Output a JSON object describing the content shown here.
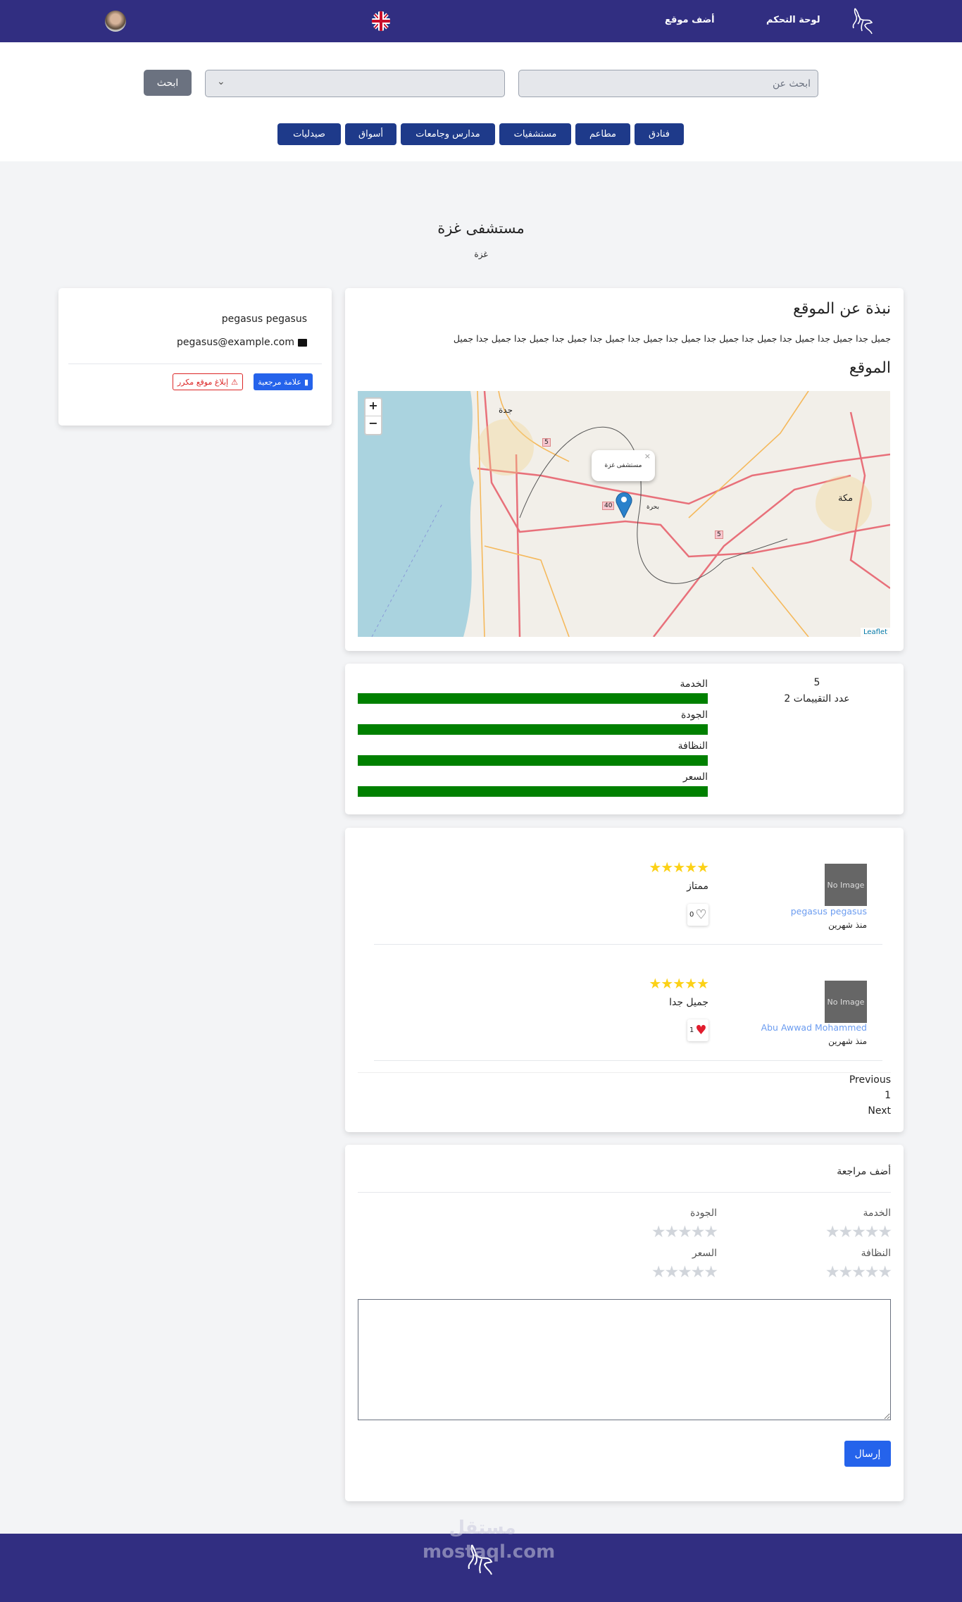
{
  "nav": {
    "dashboard": "لوحة التحكم",
    "add_site": "أضف موقع",
    "logo": "pegasus-logo",
    "flag": "uk-flag-icon",
    "avatar": "user-avatar"
  },
  "search": {
    "placeholder": "ابحث عن",
    "select_value": "",
    "button": "ابحث"
  },
  "categories": [
    "فنادق",
    "مطاعم",
    "مستشفيات",
    "مدارس وجامعات",
    "أسواق",
    "صيدليات"
  ],
  "place": {
    "title": "مستشفى غزة",
    "city": "غزة"
  },
  "owner": {
    "name": "pegasus pegasus",
    "email": "pegasus@example.com",
    "bookmark": "علامة مرجعية",
    "report": "إبلاغ موقع مكرر"
  },
  "about": {
    "heading": "نبذة عن الموقع",
    "text": "جميل جدا جميل جدا جميل جدا جميل جدا جميل جدا جميل جدا جميل جدا جميل جدا جميل جدا جميل جدا جميل جدا جميل",
    "location_heading": "الموقع"
  },
  "map": {
    "popup": "مستشفى غزة",
    "zoom_in": "+",
    "zoom_out": "−",
    "attribution": "Leaflet",
    "labels": {
      "jeddah": "جدة",
      "makkah": "مكة",
      "bahra": "بحرة"
    },
    "road_shields": [
      "5",
      "40",
      "5"
    ]
  },
  "ratings": {
    "average": "5",
    "count_label": "عدد التقييمات 2",
    "criteria": [
      {
        "label": "الخدمة",
        "value": 5
      },
      {
        "label": "الجودة",
        "value": 5
      },
      {
        "label": "النظافة",
        "value": 5
      },
      {
        "label": "السعر",
        "value": 5
      }
    ],
    "max": 5,
    "bar_color": "#008000"
  },
  "reviews": [
    {
      "user": "pegasus pegasus",
      "time": "منذ شهرين",
      "stars": 5,
      "text": "ممتاز",
      "likes": "0",
      "liked": false,
      "avatar": "No Image"
    },
    {
      "user": "Abu Awwad Mohammed",
      "time": "منذ شهرين",
      "stars": 5,
      "text": "جميل جدا",
      "likes": "1",
      "liked": true,
      "avatar": "No Image"
    }
  ],
  "pagination": {
    "previous": "Previous",
    "page": "1",
    "next": "Next"
  },
  "add_review": {
    "title": "أضف مراجعة",
    "criteria": [
      "الخدمة",
      "الجودة",
      "النظافة",
      "السعر"
    ],
    "textarea": "",
    "submit": "إرسال"
  },
  "footer": {
    "watermark": "مستقل mostaql.com"
  }
}
